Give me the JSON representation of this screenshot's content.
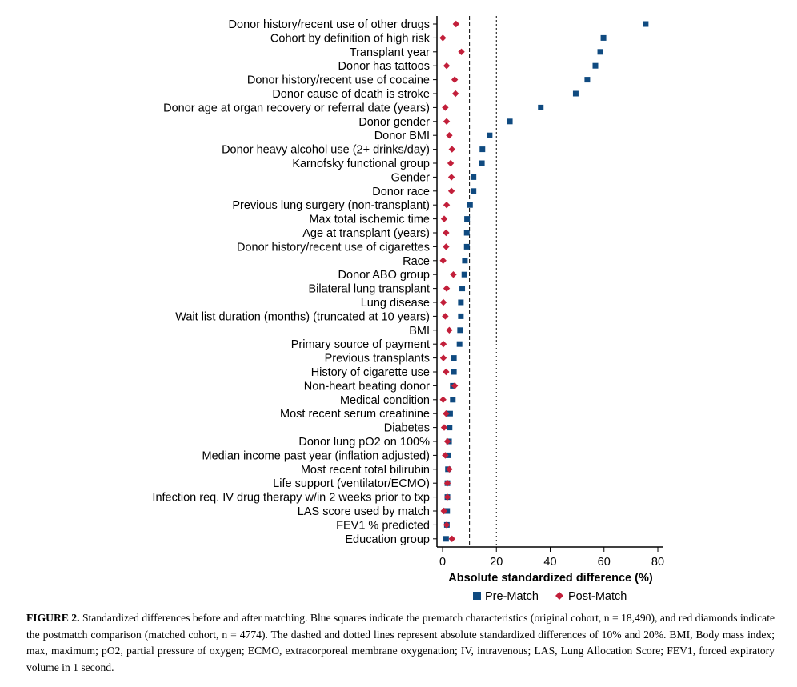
{
  "chart_data": {
    "type": "scatter",
    "xlabel": "Absolute standardized difference (%)",
    "xlim": [
      -5,
      85
    ],
    "xticks": [
      0,
      20,
      40,
      60,
      80
    ],
    "reference_lines": [
      {
        "x": 10,
        "style": "dashed"
      },
      {
        "x": 20,
        "style": "dotted"
      }
    ],
    "legend_position": "bottom",
    "categories": [
      "Donor history/recent use of other drugs",
      "Cohort by definition of high risk",
      "Transplant year",
      "Donor has tattoos",
      "Donor history/recent use of cocaine",
      "Donor cause of death is stroke",
      "Donor age at organ recovery or referral date (years)",
      "Donor gender",
      "Donor BMI",
      "Donor heavy alcohol use (2+ drinks/day)",
      "Karnofsky functional group",
      "Gender",
      "Donor race",
      "Previous lung surgery (non-transplant)",
      "Max total ischemic time",
      "Age at transplant (years)",
      "Donor history/recent use of cigarettes",
      "Race",
      "Donor ABO group",
      "Bilateral lung transplant",
      "Lung disease",
      "Wait list duration (months) (truncated at 10 years)",
      "BMI",
      "Primary source of payment",
      "Previous transplants",
      "History of cigarette use",
      "Non-heart beating donor",
      "Medical condition",
      "Most recent serum creatinine",
      "Diabetes",
      "Donor lung pO2 on 100%",
      "Median income past year (inflation adjusted)",
      "Most recent total bilirubin",
      "Life support (ventilator/ECMO)",
      "Infection req. IV drug therapy w/in 2 weeks prior to txp",
      "LAS score used by match",
      "FEV1 % predicted",
      "Education group"
    ],
    "series": [
      {
        "name": "Pre-Match",
        "color": "#0f4a80",
        "marker": "square",
        "values": [
          75.5,
          59.8,
          58.6,
          56.8,
          53.8,
          49.5,
          36.5,
          25,
          17.5,
          14.8,
          14.6,
          11.5,
          11.5,
          10.2,
          9.1,
          9.0,
          9.0,
          8.3,
          8.1,
          7.3,
          6.8,
          6.8,
          6.5,
          6.3,
          4.2,
          4.2,
          3.8,
          3.8,
          2.8,
          2.6,
          2.4,
          2.2,
          2.0,
          1.8,
          1.8,
          1.7,
          1.6,
          1.3
        ]
      },
      {
        "name": "Post-Match",
        "color": "#c21f3a",
        "marker": "diamond",
        "values": [
          5.0,
          0.1,
          7.0,
          1.5,
          4.5,
          4.8,
          1.0,
          1.5,
          2.5,
          3.5,
          3.0,
          3.3,
          3.3,
          1.5,
          0.6,
          1.3,
          1.3,
          0.2,
          4.0,
          1.5,
          0.3,
          1.0,
          2.5,
          0.3,
          0.3,
          1.3,
          4.5,
          0.2,
          1.3,
          0.6,
          1.8,
          1.0,
          2.5,
          1.8,
          1.8,
          0.5,
          1.5,
          3.5
        ]
      }
    ]
  },
  "caption": {
    "figure_label": "FIGURE 2.",
    "text": "Standardized differences before and after matching. Blue squares indicate the prematch characteristics (original cohort, n = 18,490), and red diamonds indicate the postmatch comparison (matched cohort, n = 4774). The dashed and dotted lines represent absolute standardized differences of 10% and 20%. BMI, Body mass index; max, maximum; pO2, partial pressure of oxygen; ECMO, extracorporeal membrane oxygenation; IV, intravenous; LAS, Lung Allocation Score; FEV1, forced expiratory volume in 1 second."
  }
}
